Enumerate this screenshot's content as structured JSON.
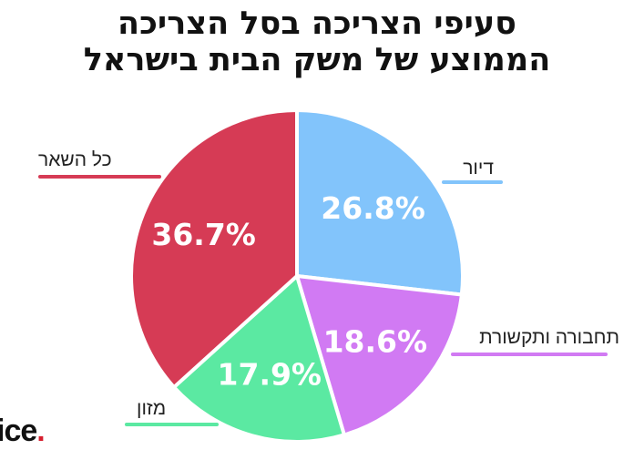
{
  "title": {
    "line1": "סעיפי הצריכה בסל הצריכה",
    "line2": "הממוצע של משק הבית בישראל"
  },
  "logo": {
    "text": "ice",
    "dot": "."
  },
  "chart_data": {
    "type": "pie",
    "start_angle_deg": 0,
    "direction": "clockwise",
    "slices": [
      {
        "label": "דיור",
        "value": 26.8,
        "value_label": "26.8%",
        "color": "#82c4fb"
      },
      {
        "label": "תחבורה ותקשורת",
        "value": 18.6,
        "value_label": "18.6%",
        "color": "#d17af3"
      },
      {
        "label": "מזון",
        "value": 17.9,
        "value_label": "17.9%",
        "color": "#5be9a2"
      },
      {
        "label": "כל השאר",
        "value": 36.7,
        "value_label": "36.7%",
        "color": "#d63b55"
      }
    ]
  }
}
